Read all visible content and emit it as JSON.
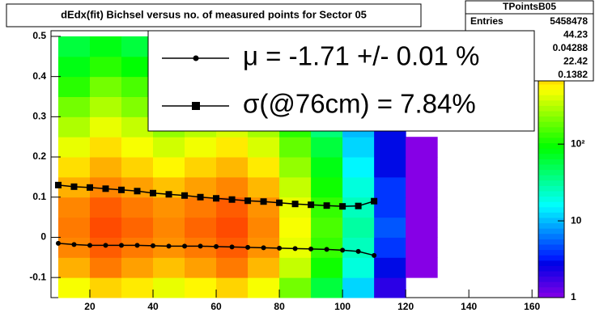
{
  "chart_data": {
    "type": "heatmap",
    "title": "dEdx(fit) Bichsel versus no. of measured points for Sector 05",
    "xlim": [
      7.7,
      162
    ],
    "xticks": [
      20,
      40,
      60,
      80,
      100,
      120,
      140,
      160
    ],
    "ylim": [
      -0.15,
      0.514
    ],
    "yticks": [
      -0.1,
      0,
      0.1,
      0.2,
      0.3,
      0.4,
      0.5
    ],
    "zlim": [
      1,
      3000
    ],
    "zticks": [
      1,
      10,
      {
        "value": 100,
        "label": "10²"
      }
    ],
    "zlog": true,
    "xbins": [
      10,
      20,
      30,
      40,
      50,
      60,
      70,
      80,
      90,
      100,
      110,
      120,
      130
    ],
    "ybins": [
      -0.15,
      -0.1,
      -0.05,
      0,
      0.05,
      0.1,
      0.15,
      0.2,
      0.25,
      0.3,
      0.35,
      0.4,
      0.45,
      0.5
    ],
    "z": [
      [
        500,
        700,
        600,
        450,
        550,
        700,
        500,
        200,
        60,
        12,
        2,
        0
      ],
      [
        900,
        1300,
        1000,
        800,
        1000,
        1300,
        850,
        350,
        100,
        20,
        3,
        1
      ],
      [
        1200,
        1600,
        1300,
        1100,
        1300,
        1600,
        1100,
        450,
        130,
        25,
        4,
        1
      ],
      [
        1300,
        1800,
        1500,
        1200,
        1500,
        1800,
        1200,
        500,
        150,
        30,
        5,
        1
      ],
      [
        1200,
        1600,
        1300,
        1100,
        1300,
        1600,
        1100,
        450,
        130,
        25,
        4,
        1
      ],
      [
        900,
        1200,
        1000,
        800,
        1000,
        1200,
        850,
        350,
        100,
        20,
        4,
        1
      ],
      [
        650,
        900,
        700,
        550,
        700,
        850,
        600,
        250,
        80,
        15,
        3,
        1
      ],
      [
        450,
        650,
        500,
        380,
        480,
        600,
        400,
        180,
        60,
        12,
        3,
        1
      ],
      [
        300,
        450,
        350,
        250,
        320,
        400,
        280,
        120,
        40,
        10,
        3,
        0
      ],
      [
        200,
        300,
        220,
        160,
        200,
        250,
        180,
        80,
        30,
        8,
        2,
        0
      ],
      [
        120,
        200,
        150,
        100,
        130,
        160,
        120,
        60,
        25,
        8,
        2,
        0
      ],
      [
        80,
        120,
        90,
        60,
        80,
        100,
        80,
        40,
        20,
        6,
        2,
        0
      ],
      [
        60,
        80,
        60,
        40,
        50,
        60,
        50,
        30,
        15,
        5,
        2,
        0
      ]
    ],
    "profile_x": [
      10,
      15,
      20,
      25,
      30,
      35,
      40,
      45,
      50,
      55,
      60,
      65,
      70,
      75,
      80,
      85,
      90,
      95,
      100,
      105,
      110
    ],
    "series": [
      {
        "name": "μ  = -1.71 +/-  0.01 %",
        "marker": "circle",
        "color": "#000000",
        "values": [
          -0.015,
          -0.018,
          -0.02,
          -0.02,
          -0.02,
          -0.02,
          -0.021,
          -0.022,
          -0.022,
          -0.022,
          -0.023,
          -0.024,
          -0.025,
          -0.026,
          -0.027,
          -0.028,
          -0.029,
          -0.03,
          -0.032,
          -0.035,
          -0.045
        ]
      },
      {
        "name": "σ(@76cm) =  7.84%",
        "marker": "square",
        "color": "#000000",
        "values": [
          0.13,
          0.126,
          0.124,
          0.121,
          0.118,
          0.115,
          0.11,
          0.107,
          0.104,
          0.1,
          0.097,
          0.094,
          0.091,
          0.089,
          0.086,
          0.083,
          0.081,
          0.079,
          0.077,
          0.078,
          0.09
        ]
      }
    ],
    "stats": {
      "title": "TPointsB05",
      "entries_label": "Entries",
      "values": [
        "5458478",
        "44.23",
        "0.04288",
        "22.42",
        "0.1382"
      ]
    }
  }
}
